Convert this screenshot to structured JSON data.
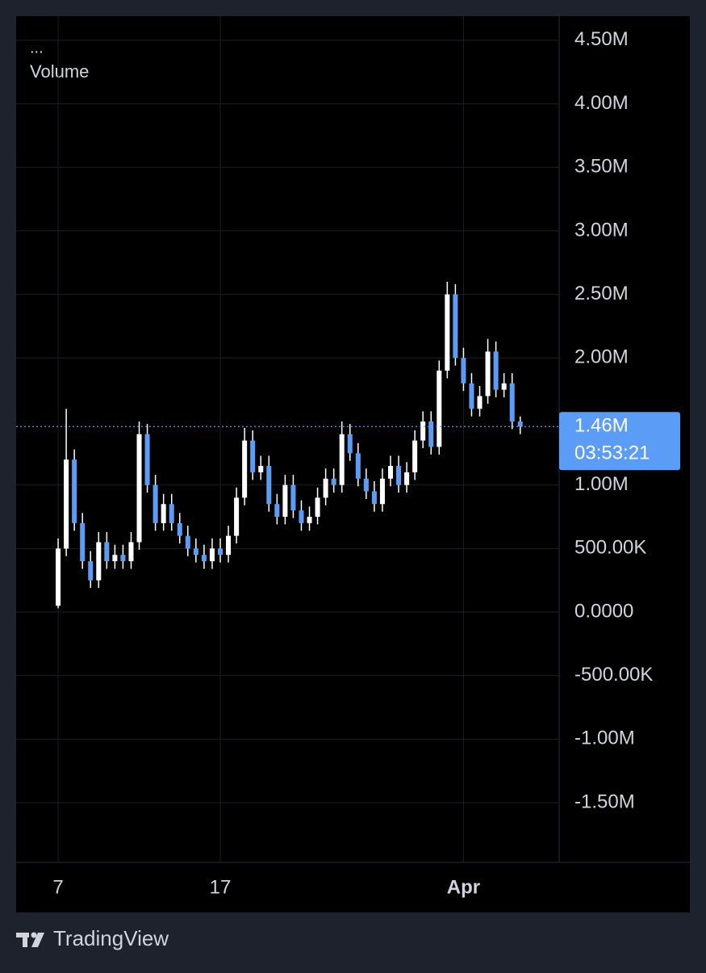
{
  "chart_data": {
    "type": "candlestick",
    "menu": "...",
    "indicator": "Volume",
    "x": [
      7,
      7.5,
      8,
      8.5,
      9,
      9.5,
      10,
      10.5,
      11,
      11.5,
      12,
      12.5,
      13,
      13.5,
      14,
      14.5,
      15,
      15.5,
      16,
      16.5,
      17,
      17.5,
      18,
      18.5,
      19,
      19.5,
      20,
      20.5,
      21,
      21.5,
      22,
      22.5,
      23,
      23.5,
      24,
      24.5,
      25,
      25.5,
      26,
      26.5,
      27,
      27.5,
      28,
      28.5,
      29,
      29.5,
      30,
      30.5,
      31,
      31.5,
      32,
      32.5,
      33,
      33.5,
      34,
      34.5,
      35,
      35.5
    ],
    "open": [
      50000,
      500000,
      1200000,
      700000,
      400000,
      250000,
      550000,
      400000,
      450000,
      400000,
      550000,
      1400000,
      1000000,
      700000,
      850000,
      700000,
      600000,
      500000,
      450000,
      400000,
      500000,
      450000,
      600000,
      900000,
      1350000,
      1100000,
      1150000,
      850000,
      750000,
      1000000,
      800000,
      700000,
      750000,
      900000,
      1050000,
      1000000,
      1400000,
      1250000,
      1050000,
      950000,
      850000,
      1050000,
      1150000,
      1000000,
      1100000,
      1350000,
      1500000,
      1300000,
      1900000,
      2500000,
      2000000,
      1800000,
      1600000,
      1700000,
      2050000,
      1750000,
      1800000,
      1500000
    ],
    "high": [
      580000,
      1600000,
      1280000,
      780000,
      480000,
      630000,
      630000,
      530000,
      530000,
      630000,
      1500000,
      1480000,
      1080000,
      930000,
      930000,
      780000,
      680000,
      580000,
      530000,
      580000,
      580000,
      680000,
      980000,
      1450000,
      1430000,
      1230000,
      1230000,
      930000,
      1080000,
      1080000,
      880000,
      830000,
      980000,
      1130000,
      1130000,
      1500000,
      1480000,
      1330000,
      1130000,
      1030000,
      1130000,
      1230000,
      1230000,
      1180000,
      1430000,
      1580000,
      1580000,
      1980000,
      2600000,
      2580000,
      2080000,
      1880000,
      1780000,
      2150000,
      2130000,
      1880000,
      1880000,
      1540000
    ],
    "low": [
      30000,
      440000,
      640000,
      340000,
      190000,
      190000,
      340000,
      340000,
      340000,
      340000,
      490000,
      940000,
      640000,
      640000,
      640000,
      540000,
      440000,
      390000,
      340000,
      340000,
      390000,
      390000,
      540000,
      840000,
      1040000,
      1040000,
      790000,
      690000,
      690000,
      740000,
      640000,
      640000,
      690000,
      840000,
      940000,
      940000,
      1190000,
      990000,
      890000,
      790000,
      790000,
      990000,
      940000,
      940000,
      1040000,
      1290000,
      1240000,
      1240000,
      1840000,
      1940000,
      1740000,
      1540000,
      1540000,
      1640000,
      1690000,
      1690000,
      1440000,
      1400000
    ],
    "close": [
      500000,
      1200000,
      700000,
      400000,
      250000,
      550000,
      400000,
      450000,
      400000,
      550000,
      1400000,
      1000000,
      700000,
      850000,
      700000,
      600000,
      500000,
      450000,
      400000,
      500000,
      450000,
      600000,
      900000,
      1350000,
      1100000,
      1150000,
      850000,
      750000,
      1000000,
      800000,
      700000,
      750000,
      900000,
      1050000,
      1000000,
      1400000,
      1250000,
      1050000,
      950000,
      850000,
      1050000,
      1150000,
      1000000,
      1100000,
      1350000,
      1500000,
      1300000,
      1900000,
      2500000,
      2000000,
      1800000,
      1600000,
      1700000,
      2050000,
      1750000,
      1800000,
      1500000,
      1460000
    ],
    "up_color": "#ffffff",
    "down_color": "#5b9cf6",
    "xlim": [
      4.41,
      37.9
    ],
    "xticks": [
      7,
      17,
      {
        "value": 32,
        "label": "Apr"
      }
    ],
    "ylim": [
      -1970000,
      4690000
    ],
    "yticks": [
      {
        "value": 4500000,
        "label": "4.50M"
      },
      {
        "value": 4000000,
        "label": "4.00M"
      },
      {
        "value": 3500000,
        "label": "3.50M"
      },
      {
        "value": 3000000,
        "label": "3.00M"
      },
      {
        "value": 2500000,
        "label": "2.50M"
      },
      {
        "value": 2000000,
        "label": "2.00M"
      },
      {
        "value": 1000000,
        "label": "1.00M"
      },
      {
        "value": 500000,
        "label": "500.00K"
      },
      {
        "value": 0,
        "label": "0.0000"
      },
      {
        "value": -500000,
        "label": "-500.00K"
      },
      {
        "value": -1000000,
        "label": "-1.00M"
      },
      {
        "value": -1500000,
        "label": "-1.50M"
      }
    ],
    "last_price": {
      "value": 1460000,
      "label": "1.46M",
      "countdown": "03:53:21",
      "color": "#5b9cf6"
    },
    "grid": true
  },
  "footer": {
    "brand": "TradingView"
  }
}
